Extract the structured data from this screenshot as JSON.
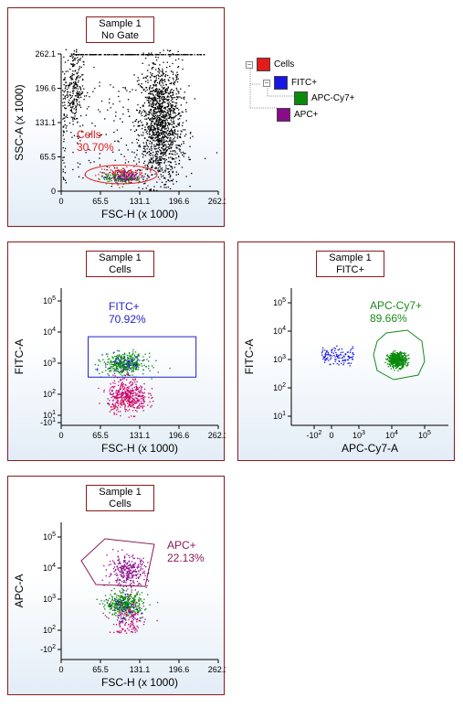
{
  "colors": {
    "cells": "#e31b1b",
    "fitc": "#1515e6",
    "apc_cy7": "#0a8a0a",
    "apc": "#8b0a8b",
    "ungated": "#000000",
    "gate_cells": "#e32020",
    "gate_fitc": "#2222cc",
    "gate_apc_cy7": "#1a8a1a",
    "gate_apc": "#8b1a5a",
    "panel_border": "#8b1a1a"
  },
  "legend": {
    "items": [
      {
        "label": "Cells",
        "color": "#e31b1b",
        "expander": "−"
      },
      {
        "label": "FITC+",
        "color": "#1515e6",
        "expander": "−"
      },
      {
        "label": "APC-Cy7+",
        "color": "#0a8a0a",
        "expander": ""
      },
      {
        "label": "APC+",
        "color": "#8b0a8b",
        "expander": ""
      }
    ]
  },
  "chart_data": [
    {
      "type": "scatter",
      "title": "Sample 1\nNo Gate",
      "title_lines": [
        "Sample 1",
        "No Gate"
      ],
      "xlabel": "FSC-H (x 1000)",
      "ylabel": "SSC-A (x 1000)",
      "xscale": "linear",
      "yscale": "linear",
      "xlim": [
        0,
        262.1
      ],
      "ylim": [
        0,
        262.1
      ],
      "xticks": [
        "0",
        "65.5",
        "131.1",
        "196.6",
        "262.1"
      ],
      "yticks": [
        "0",
        "65.5",
        "131.1",
        "196.6",
        "262.1"
      ],
      "populations": [
        {
          "name": "Cells",
          "color": "#e32020",
          "center": [
            100,
            32
          ],
          "spread": [
            32,
            9
          ],
          "count": 160
        },
        {
          "name": "FITC+",
          "color": "#1515e6",
          "center": [
            100,
            27
          ],
          "spread": [
            25,
            5
          ],
          "count": 40
        },
        {
          "name": "APC-Cy7+",
          "color": "#0a8a0a",
          "center": [
            100,
            26
          ],
          "spread": [
            28,
            6
          ],
          "count": 110
        },
        {
          "name": "APC+",
          "color": "#8b0a8b",
          "center": [
            112,
            30
          ],
          "spread": [
            22,
            6
          ],
          "count": 60
        }
      ],
      "ungated": [
        {
          "center": [
            165,
            130
          ],
          "spread": [
            18,
            60
          ],
          "count": 1400
        },
        {
          "center": [
            20,
            200
          ],
          "spread": [
            8,
            40
          ],
          "count": 260
        },
        {
          "center": [
            120,
            262
          ],
          "spread": [
            70,
            0
          ],
          "count": 180
        },
        {
          "center": [
            3,
            120
          ],
          "spread": [
            2,
            120
          ],
          "count": 90
        },
        {
          "center": [
            90,
            100
          ],
          "spread": [
            60,
            60
          ],
          "count": 180
        }
      ],
      "gates": [
        {
          "name": "Cells",
          "label": "Cells",
          "percent": "30.70%",
          "shape": "ellipse",
          "center": [
            100,
            32
          ],
          "radii": [
            60,
            17
          ],
          "color": "#e32020"
        }
      ]
    },
    {
      "type": "scatter",
      "title_lines": [
        "Sample 1",
        "Cells"
      ],
      "xlabel": "FSC-H (x 1000)",
      "ylabel": "FITC-A",
      "xscale": "linear",
      "yscale": "biexponential",
      "xlim": [
        0,
        262.1
      ],
      "xticks": [
        "0",
        "65.5",
        "131.1",
        "196.6",
        "262.1"
      ],
      "yticks": [
        "-10^1",
        "10^1",
        "10^2",
        "10^3",
        "10^4",
        "10^5"
      ],
      "populations": [
        {
          "name": "APC+",
          "color": "#c8006e",
          "center": [
            110,
            1.9
          ],
          "spread": [
            30,
            0.35
          ],
          "count": 420
        },
        {
          "name": "APC-Cy7+",
          "color": "#0a8a0a",
          "center": [
            105,
            3.0
          ],
          "spread": [
            32,
            0.16
          ],
          "count": 380
        },
        {
          "name": "FITC+",
          "color": "#1515e6",
          "center": [
            105,
            3.0
          ],
          "spread": [
            30,
            0.18
          ],
          "count": 60
        },
        {
          "name": "Cells",
          "color": "#e32020",
          "center": [
            108,
            1.6
          ],
          "spread": [
            25,
            0.4
          ],
          "count": 40
        }
      ],
      "gates": [
        {
          "name": "FITC+",
          "label": "FITC+",
          "percent": "70.92%",
          "shape": "rect",
          "x": [
            45,
            225
          ],
          "y": [
            2.55,
            3.85
          ],
          "color": "#2222cc"
        }
      ]
    },
    {
      "type": "scatter",
      "title_lines": [
        "Sample 1",
        "FITC+"
      ],
      "xlabel": "APC-Cy7-A",
      "ylabel": "FITC-A",
      "xscale": "biexponential",
      "yscale": "log",
      "xticks": [
        "-10^2",
        "0",
        "10^3",
        "10^4",
        "10^5"
      ],
      "yticks": [
        "10^1",
        "10^2",
        "10^3",
        "10^4",
        "10^5"
      ],
      "populations": [
        {
          "name": "APC-Cy7+",
          "color": "#0a8a0a",
          "center": [
            4.15,
            3.0
          ],
          "spread": [
            0.14,
            0.13
          ],
          "count": 520
        },
        {
          "name": "FITC+",
          "color": "#1515e6",
          "center": [
            2.3,
            3.15
          ],
          "spread": [
            0.45,
            0.15
          ],
          "count": 120
        }
      ],
      "gates": [
        {
          "name": "APC-Cy7+",
          "label": "APC-Cy7+",
          "percent": "89.66%",
          "shape": "polygon",
          "color": "#1a8a1a"
        }
      ]
    },
    {
      "type": "scatter",
      "title_lines": [
        "Sample 1",
        "Cells"
      ],
      "xlabel": "FSC-H (x 1000)",
      "ylabel": "APC-A",
      "xscale": "linear",
      "yscale": "biexponential",
      "xlim": [
        0,
        262.1
      ],
      "xticks": [
        "0",
        "65.5",
        "131.1",
        "196.6",
        "262.1"
      ],
      "yticks": [
        "-10^2",
        "10^2",
        "10^3",
        "10^4",
        "10^5"
      ],
      "populations": [
        {
          "name": "APC+",
          "color": "#8b0a8b",
          "center": [
            110,
            3.9
          ],
          "spread": [
            30,
            0.25
          ],
          "count": 300
        },
        {
          "name": "APC-Cy7+",
          "color": "#0a8a0a",
          "center": [
            105,
            2.85
          ],
          "spread": [
            28,
            0.18
          ],
          "count": 400
        },
        {
          "name": "Cells",
          "color": "#c8006e",
          "center": [
            110,
            2.3
          ],
          "spread": [
            25,
            0.35
          ],
          "count": 150
        },
        {
          "name": "FITC+",
          "color": "#1515e6",
          "center": [
            105,
            2.7
          ],
          "spread": [
            25,
            0.2
          ],
          "count": 40
        }
      ],
      "gates": [
        {
          "name": "APC+",
          "label": "APC+",
          "percent": "22.13%",
          "shape": "polygon",
          "color": "#8b1a5a"
        }
      ]
    }
  ]
}
